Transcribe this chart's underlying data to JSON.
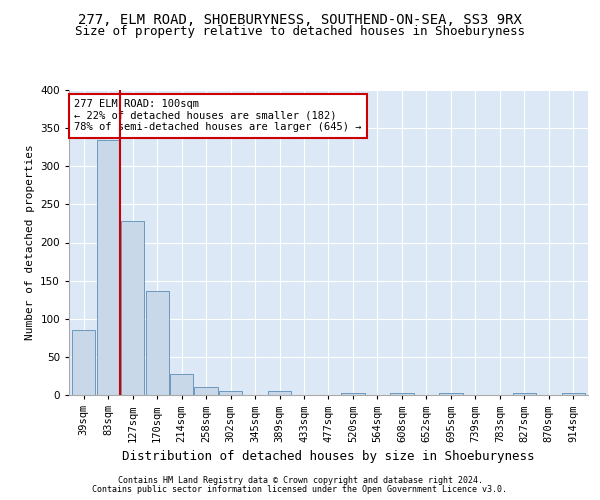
{
  "title1": "277, ELM ROAD, SHOEBURYNESS, SOUTHEND-ON-SEA, SS3 9RX",
  "title2": "Size of property relative to detached houses in Shoeburyness",
  "xlabel": "Distribution of detached houses by size in Shoeburyness",
  "ylabel": "Number of detached properties",
  "categories": [
    "39sqm",
    "83sqm",
    "127sqm",
    "170sqm",
    "214sqm",
    "258sqm",
    "302sqm",
    "345sqm",
    "389sqm",
    "433sqm",
    "477sqm",
    "520sqm",
    "564sqm",
    "608sqm",
    "652sqm",
    "695sqm",
    "739sqm",
    "783sqm",
    "827sqm",
    "870sqm",
    "914sqm"
  ],
  "values": [
    85,
    335,
    228,
    136,
    28,
    10,
    5,
    0,
    5,
    0,
    0,
    3,
    0,
    3,
    0,
    3,
    0,
    0,
    3,
    0,
    3
  ],
  "bar_color": "#c8d8e8",
  "bar_edge_color": "#5b8db8",
  "property_line_x": 1.5,
  "annotation_text": "277 ELM ROAD: 100sqm\n← 22% of detached houses are smaller (182)\n78% of semi-detached houses are larger (645) →",
  "annotation_box_color": "#ffffff",
  "annotation_box_edge": "#cc0000",
  "vline_color": "#cc0000",
  "ylim": [
    0,
    400
  ],
  "yticks": [
    0,
    50,
    100,
    150,
    200,
    250,
    300,
    350,
    400
  ],
  "footer1": "Contains HM Land Registry data © Crown copyright and database right 2024.",
  "footer2": "Contains public sector information licensed under the Open Government Licence v3.0.",
  "bg_color": "#dce8f5",
  "fig_color": "#ffffff",
  "title_fontsize": 10,
  "subtitle_fontsize": 9,
  "ylabel_fontsize": 8,
  "xlabel_fontsize": 9,
  "tick_fontsize": 7.5,
  "footer_fontsize": 6,
  "annot_fontsize": 7.5
}
